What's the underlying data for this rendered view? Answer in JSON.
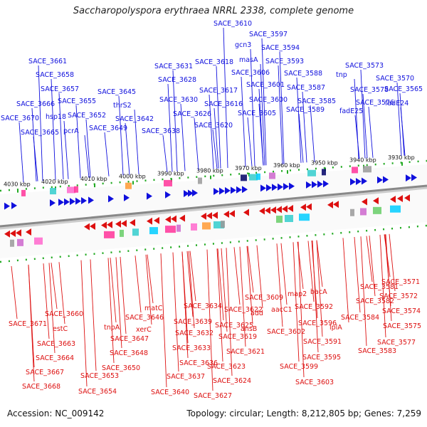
{
  "title": "Saccharopolyspora erythraea NRRL 2338, complete genome",
  "footer": {
    "accession": "Accession: NC_009142",
    "summary": "Topology: circular; Length: 8,212,805 bp; Genes: 7,259"
  },
  "colors": {
    "forward_genes": "#1010dd",
    "reverse_genes": "#dd1010",
    "tick_marks": "#22aa22",
    "backbone": "#888888",
    "category_palette": [
      "#ff3399",
      "#33cccc",
      "#00ccff",
      "#ff66cc",
      "#999999",
      "#cc66cc",
      "#ff9933",
      "#66cc66",
      "#000066",
      "#cccc33"
    ]
  },
  "scale_labels": [
    "4030 kbp",
    "4020 kbp",
    "4010 kbp",
    "4000 kbp",
    "3990 kbp",
    "3980 kbp",
    "3970 kbp",
    "3960 kbp",
    "3950 kbp",
    "3940 kbp",
    "3930 kbp"
  ],
  "forward_gene_labels": [
    "SACE_3610",
    "SACE_3597",
    "gcn3",
    "SACE_3594",
    "masA",
    "SACE_3661",
    "SACE_3593",
    "SACE_3573",
    "SACE_3631",
    "SACE_3618",
    "SACE_3606",
    "SACE_3588",
    "SACE_3658",
    "tnp",
    "SACE_3570",
    "SACE_3628",
    "SACE_3601",
    "SACE_3587",
    "SACE_3657",
    "SACE_3645",
    "SACE_3617",
    "SACE_3578",
    "SACE_3565",
    "SACE_3655",
    "SACE_3630",
    "SACE_3600",
    "SACE_3585",
    "SACE_3666",
    "hsp18",
    "thrS2",
    "SACE_3616",
    "SACE_3576",
    "fadE24",
    "SACE_3652",
    "SACE_3626",
    "SACE_3605",
    "SACE_3589",
    "fadE25",
    "SACE_3670",
    "pcrA",
    "SACE_3642",
    "SACE_3665",
    "SACE_3649",
    "SACE_3620",
    "SACE_3638"
  ],
  "reverse_gene_labels": [
    "SACE_3571",
    "SACE_3581",
    "SACE_3572",
    "SACE_3582",
    "SACE_3574",
    "bacA",
    "map2",
    "SACE_3592",
    "SACE_3609",
    "add",
    "aacC1",
    "SACE_3584",
    "matC",
    "SACE_3634",
    "SACE_3622",
    "SACE_3596",
    "SACE_3575",
    "SACE_3660",
    "SACE_3646",
    "SACE_3639",
    "SACE_3625",
    "ansB",
    "SACE_3602",
    "lplA",
    "SACE_3671",
    "tnpA",
    "xerC",
    "SACE_3632",
    "SACE_3619",
    "estC",
    "SACE_3647",
    "SACE_3591",
    "SACE_3577",
    "SACE_3663",
    "SACE_3633",
    "SACE_3621",
    "SACE_3583",
    "SACE_3648",
    "SACE_3595",
    "SACE_3664",
    "SACE_3636",
    "SACE_3650",
    "SACE_3623",
    "SACE_3599",
    "SACE_3667",
    "SACE_3637",
    "SACE_3653",
    "SACE_3624",
    "SACE_3603",
    "SACE_3668",
    "SACE_3640",
    "SACE_3627",
    "SACE_3654"
  ]
}
